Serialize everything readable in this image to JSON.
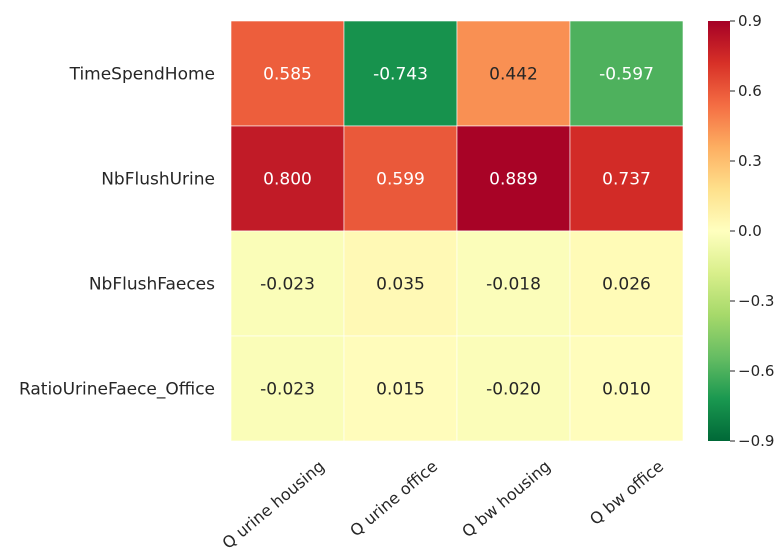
{
  "chart_data": {
    "type": "heatmap",
    "title": "",
    "rows": [
      "TimeSpendHome",
      "NbFlushUrine",
      "NbFlushFaeces",
      "RatioUrineFaece_Office"
    ],
    "columns": [
      "Q urine housing",
      "Q urine office",
      "Q bw housing",
      "Q bw office"
    ],
    "values": [
      [
        0.585,
        -0.743,
        0.442,
        -0.597
      ],
      [
        0.8,
        0.599,
        0.889,
        0.737
      ],
      [
        -0.023,
        0.035,
        -0.018,
        0.026
      ],
      [
        -0.023,
        0.015,
        -0.02,
        0.01
      ]
    ],
    "value_format": "3 decimals",
    "colormap": "RdYlGn_r",
    "colorbar": {
      "vmin": -0.9,
      "vmax": 0.9,
      "ticks": [
        0.9,
        0.6,
        0.3,
        0.0,
        -0.3,
        -0.6,
        -0.9
      ],
      "tick_labels": [
        "0.9",
        "0.6",
        "0.3",
        "0.0",
        "−0.3",
        "−0.6",
        "−0.9"
      ]
    }
  }
}
